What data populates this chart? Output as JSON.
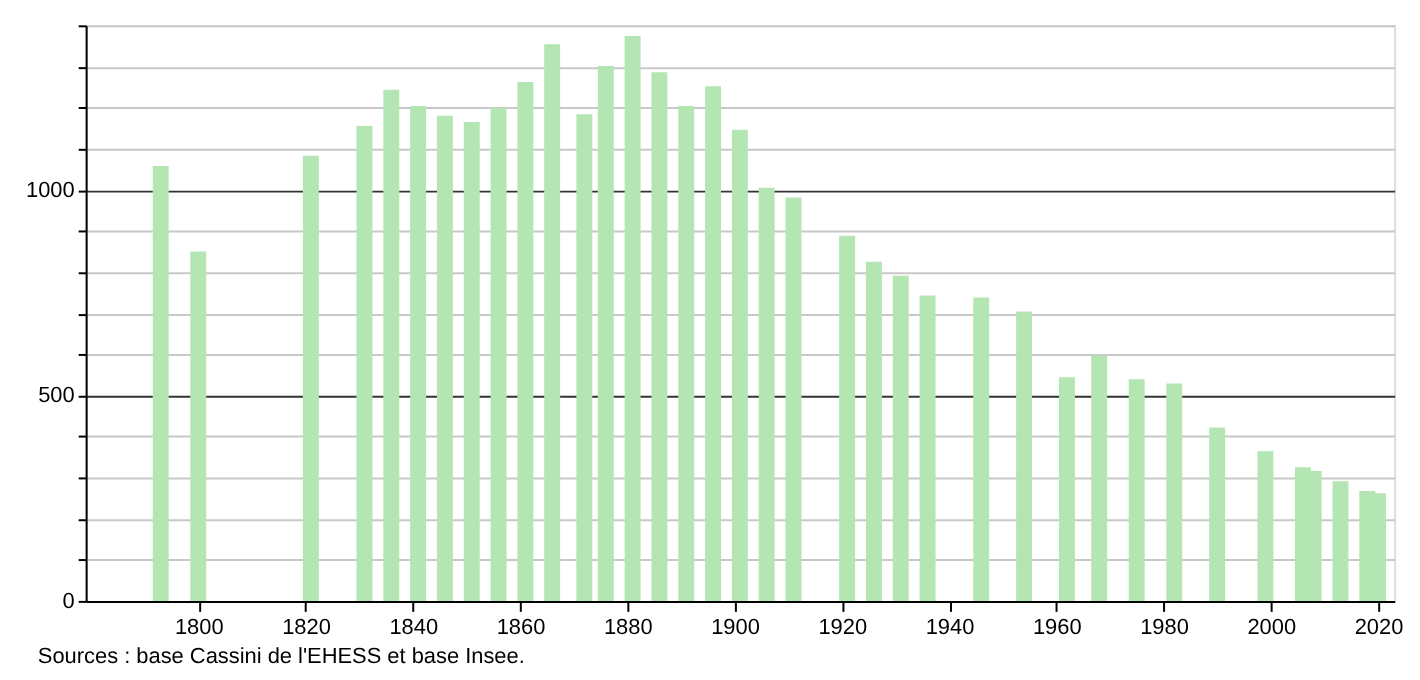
{
  "chart_data": {
    "type": "bar",
    "color": "#b3e6b3",
    "x": [
      1793,
      1800,
      1821,
      1831,
      1836,
      1841,
      1846,
      1851,
      1856,
      1861,
      1866,
      1872,
      1876,
      1881,
      1886,
      1891,
      1896,
      1901,
      1906,
      1911,
      1921,
      1926,
      1931,
      1936,
      1946,
      1954,
      1962,
      1968,
      1975,
      1982,
      1990,
      1999,
      2006,
      2008,
      2013,
      2018,
      2020
    ],
    "values": [
      1058,
      850,
      1083,
      1155,
      1243,
      1204,
      1180,
      1165,
      1199,
      1262,
      1354,
      1184,
      1301,
      1374,
      1286,
      1204,
      1252,
      1146,
      1005,
      981,
      888,
      825,
      791,
      743,
      738,
      704,
      544,
      597,
      539,
      529,
      422,
      364,
      325,
      316,
      291,
      267,
      262
    ],
    "xlim": [
      1779,
      2023
    ],
    "xticks": [
      1800,
      1820,
      1840,
      1860,
      1880,
      1900,
      1920,
      1940,
      1960,
      1980,
      2000,
      2020
    ],
    "ylim": [
      0,
      1400
    ],
    "yticks": [
      0,
      {
        "value": 100,
        "label": null
      },
      {
        "value": 200,
        "label": null
      },
      {
        "value": 300,
        "label": null
      },
      {
        "value": 400,
        "label": null
      },
      500,
      {
        "value": 600,
        "label": null
      },
      {
        "value": 700,
        "label": null
      },
      {
        "value": 800,
        "label": null
      },
      {
        "value": 900,
        "label": null
      },
      1000,
      {
        "value": 1100,
        "label": null
      },
      {
        "value": 1200,
        "label": null
      },
      {
        "value": 1300,
        "label": null
      },
      {
        "value": 1400,
        "label": null
      }
    ],
    "grid": "y",
    "annotations": [
      "Sources : base Cassini de l'EHESS et base Insee."
    ]
  }
}
